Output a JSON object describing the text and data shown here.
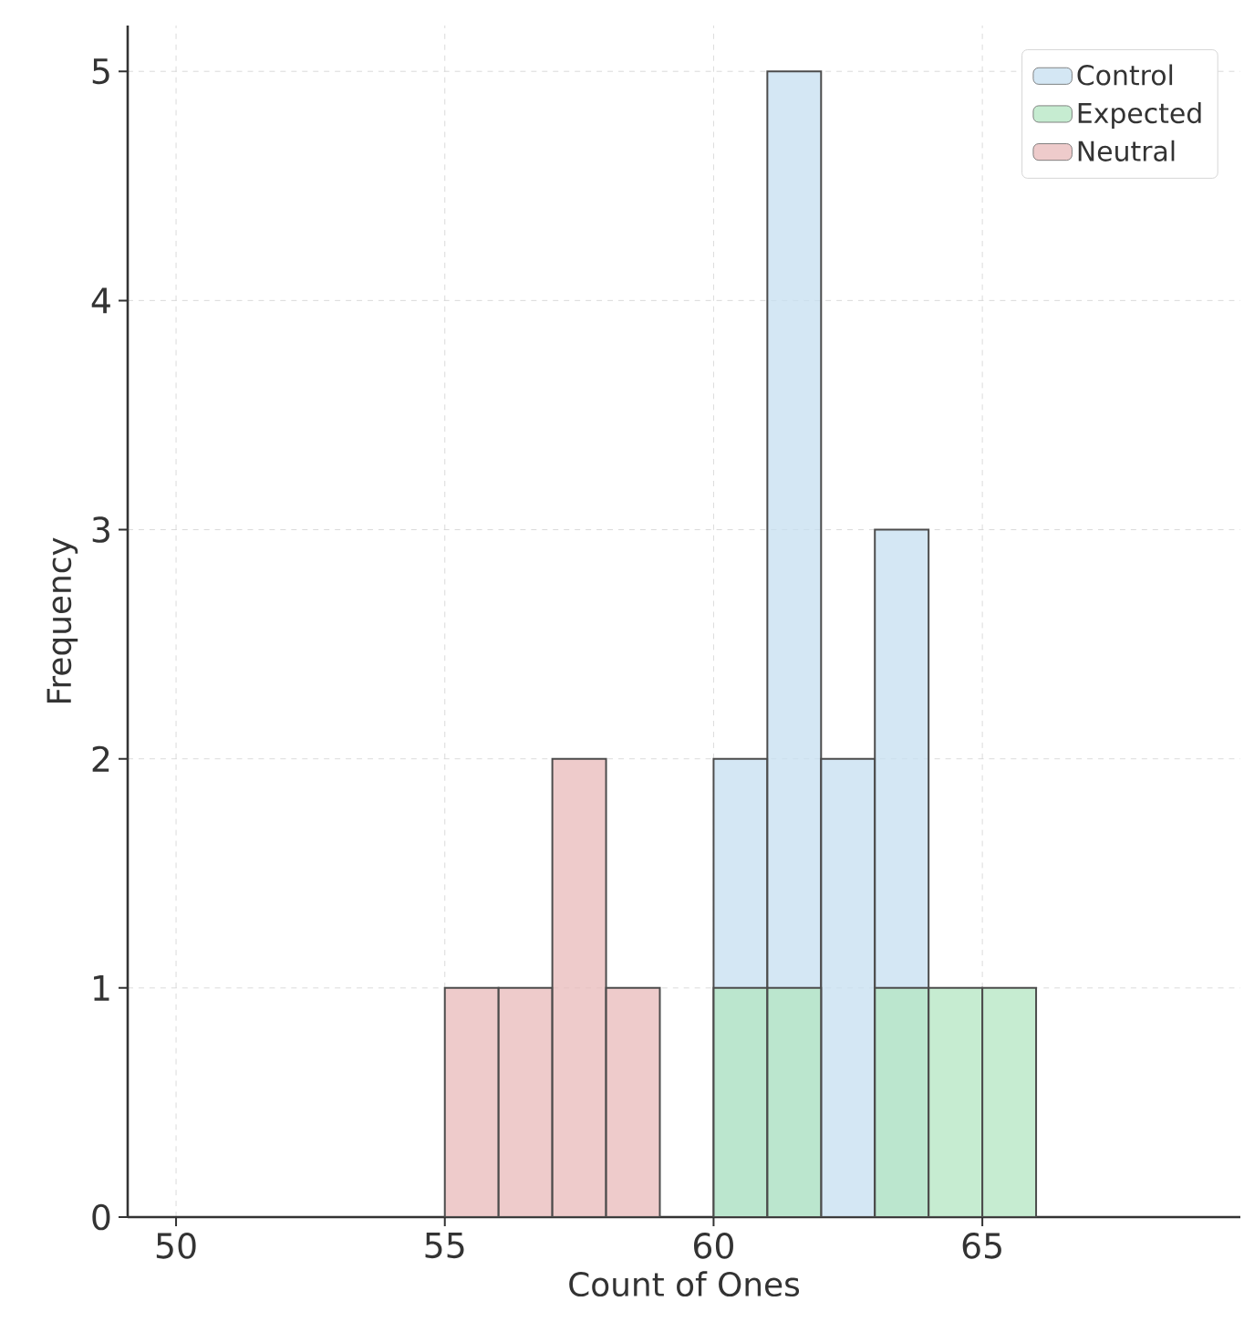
{
  "chart_data": {
    "type": "histogram",
    "xlabel": "Count of Ones",
    "ylabel": "Frequency",
    "bins": [
      55,
      56,
      57,
      58,
      59,
      60,
      61,
      62,
      63,
      64,
      65,
      66
    ],
    "series": [
      {
        "name": "Control",
        "color": "#c6dff0",
        "values": [
          0,
          0,
          0,
          null,
          0,
          2,
          5,
          2,
          3,
          0,
          0
        ]
      },
      {
        "name": "Expected",
        "color": "#b3e6c2",
        "values": [
          0,
          0,
          0,
          0,
          0,
          1,
          1,
          0,
          1,
          1,
          1
        ]
      },
      {
        "name": "Neutral",
        "color": "#e8b9ba",
        "values": [
          1,
          1,
          2,
          1,
          0,
          0,
          0,
          0,
          0,
          0,
          0
        ]
      }
    ],
    "xlim": [
      49.1,
      69.8
    ],
    "ylim": [
      0,
      5.2
    ],
    "xticks": [
      50,
      55,
      60,
      65
    ],
    "yticks": [
      0,
      1,
      2,
      3,
      4,
      5
    ],
    "grid": true,
    "legend": "top right"
  }
}
